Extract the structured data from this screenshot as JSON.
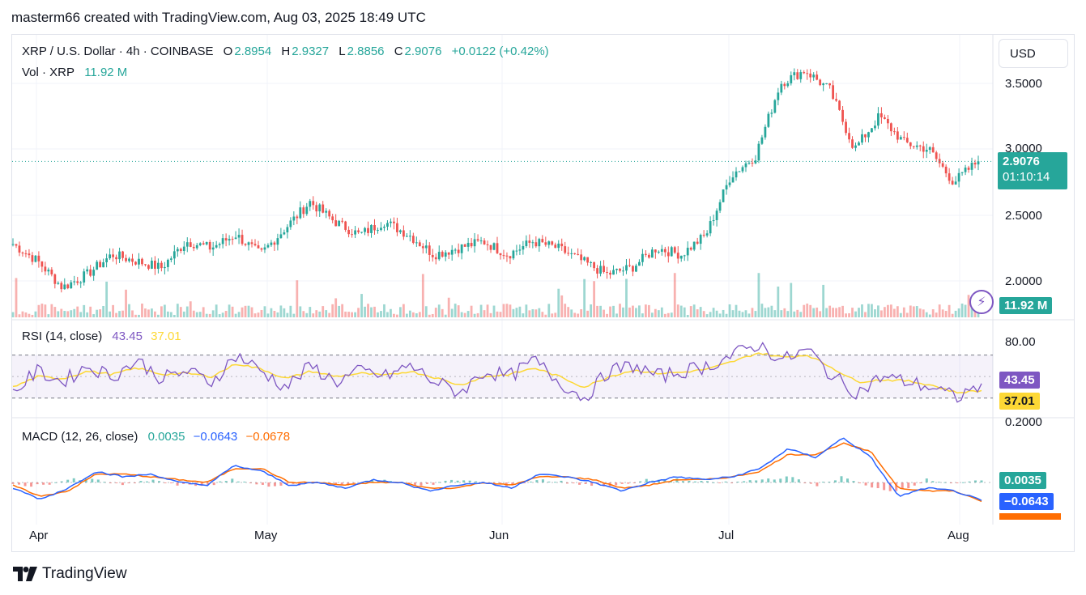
{
  "header": "masterm66 created with TradingView.com, Aug 03, 2025 18:49 UTC",
  "footer": "TradingView",
  "price_legend": {
    "symbol": "XRP / U.S. Dollar · 4h · COINBASE",
    "o_label": "O",
    "o": "2.8954",
    "h_label": "H",
    "h": "2.9327",
    "l_label": "L",
    "l": "2.8856",
    "c_label": "C",
    "c": "2.9076",
    "change": "+0.0122 (+0.42%)"
  },
  "vol_legend": {
    "label": "Vol · XRP",
    "value": "11.92 M"
  },
  "rsi_legend": {
    "label": "RSI (14, close)",
    "rsi": "43.45",
    "ma": "37.01"
  },
  "macd_legend": {
    "label": "MACD (12, 26, close)",
    "hist": "0.0035",
    "macd": "−0.0643",
    "signal": "−0.0678"
  },
  "currency_button": "USD",
  "price_axis": [
    "3.5000",
    "3.0000",
    "2.5000",
    "2.0000"
  ],
  "rsi_axis": [
    "80.00"
  ],
  "macd_axis": [
    "0.2000"
  ],
  "tags": {
    "price": "2.9076",
    "countdown": "01:10:14",
    "volume": "11.92 M",
    "rsi": "43.45",
    "rsi_ma": "37.01",
    "macd_hist": "0.0035",
    "macd": "−0.0643"
  },
  "colors": {
    "up": "#26a69a",
    "down": "#ef5350",
    "rsi": "#7e57c2",
    "rsi_ma": "#fdd835",
    "macd": "#2962ff",
    "signal": "#ff6d00",
    "legend_value": "#26a69a"
  },
  "chart_data": [
    {
      "type": "candlestick",
      "title": "XRP / U.S. Dollar · 4h · COINBASE",
      "x_ticks": [
        "Apr",
        "May",
        "Jun",
        "Jul",
        "Aug"
      ],
      "ylim": [
        1.75,
        3.75
      ],
      "close_path": [
        [
          "Apr",
          2.28
        ],
        [
          "Apr",
          2.15
        ],
        [
          "Apr",
          1.95
        ],
        [
          "Apr",
          2.05
        ],
        [
          "Apr",
          2.2
        ],
        [
          "Apr",
          2.15
        ],
        [
          "Apr",
          2.1
        ],
        [
          "Apr",
          2.3
        ],
        [
          "Apr",
          2.25
        ],
        [
          "May",
          2.35
        ],
        [
          "May",
          2.2
        ],
        [
          "May",
          2.4
        ],
        [
          "May",
          2.6
        ],
        [
          "May",
          2.45
        ],
        [
          "May",
          2.35
        ],
        [
          "May",
          2.45
        ],
        [
          "May",
          2.35
        ],
        [
          "Jun",
          2.2
        ],
        [
          "Jun",
          2.25
        ],
        [
          "Jun",
          2.3
        ],
        [
          "Jun",
          2.2
        ],
        [
          "Jun",
          2.3
        ],
        [
          "Jun",
          2.25
        ],
        [
          "Jun",
          2.15
        ],
        [
          "Jun",
          2.05
        ],
        [
          "Jun",
          2.1
        ],
        [
          "Jul",
          2.25
        ],
        [
          "Jul",
          2.2
        ],
        [
          "Jul",
          2.35
        ],
        [
          "Jul",
          2.8
        ],
        [
          "Jul",
          2.95
        ],
        [
          "Jul",
          3.5
        ],
        [
          "Jul",
          3.6
        ],
        [
          "Jul",
          3.45
        ],
        [
          "Jul",
          3.0
        ],
        [
          "Jul",
          3.25
        ],
        [
          "Jul",
          3.05
        ],
        [
          "Aug",
          3.0
        ],
        [
          "Aug",
          2.75
        ],
        [
          "Aug",
          2.91
        ]
      ],
      "last": 2.9076
    },
    {
      "type": "line",
      "title": "RSI (14, close)",
      "series": [
        {
          "name": "RSI",
          "values": [
            35,
            55,
            45,
            60,
            50,
            65,
            48,
            55,
            45,
            70,
            55,
            40,
            60,
            45,
            55,
            50,
            60,
            45,
            35,
            55,
            50,
            65,
            45,
            30,
            55,
            60,
            50,
            55,
            60,
            70,
            80,
            65,
            75,
            50,
            35,
            50,
            45,
            40,
            30,
            43.45
          ]
        },
        {
          "name": "MA",
          "values": [
            40,
            50,
            48,
            55,
            52,
            58,
            52,
            53,
            50,
            62,
            57,
            48,
            55,
            50,
            53,
            51,
            55,
            49,
            42,
            50,
            52,
            58,
            50,
            40,
            50,
            56,
            53,
            54,
            57,
            64,
            72,
            68,
            70,
            58,
            45,
            47,
            46,
            42,
            35,
            37.01
          ]
        }
      ],
      "ylim": [
        20,
        90
      ],
      "bands": [
        30,
        70
      ]
    },
    {
      "type": "line",
      "title": "MACD (12, 26, close)",
      "series": [
        {
          "name": "MACD",
          "values": [
            -0.02,
            -0.06,
            -0.02,
            0.04,
            0.02,
            0.03,
            0.0,
            -0.01,
            0.06,
            0.04,
            -0.01,
            0.0,
            -0.02,
            0.01,
            0.0,
            -0.03,
            -0.01,
            0.0,
            -0.02,
            0.03,
            0.02,
            0.0,
            -0.03,
            0.0,
            0.02,
            0.01,
            0.02,
            0.05,
            0.12,
            0.09,
            0.16,
            0.09,
            -0.05,
            -0.02,
            -0.03,
            -0.0643
          ]
        },
        {
          "name": "Signal",
          "values": [
            -0.01,
            -0.05,
            -0.03,
            0.03,
            0.03,
            0.02,
            0.01,
            0.0,
            0.05,
            0.05,
            0.0,
            0.0,
            -0.01,
            0.0,
            0.0,
            -0.02,
            -0.02,
            0.0,
            -0.01,
            0.02,
            0.02,
            0.01,
            -0.02,
            -0.01,
            0.01,
            0.01,
            0.02,
            0.04,
            0.1,
            0.1,
            0.14,
            0.11,
            -0.02,
            -0.03,
            -0.03,
            -0.0678
          ]
        }
      ],
      "ylim": [
        -0.1,
        0.2
      ]
    }
  ]
}
